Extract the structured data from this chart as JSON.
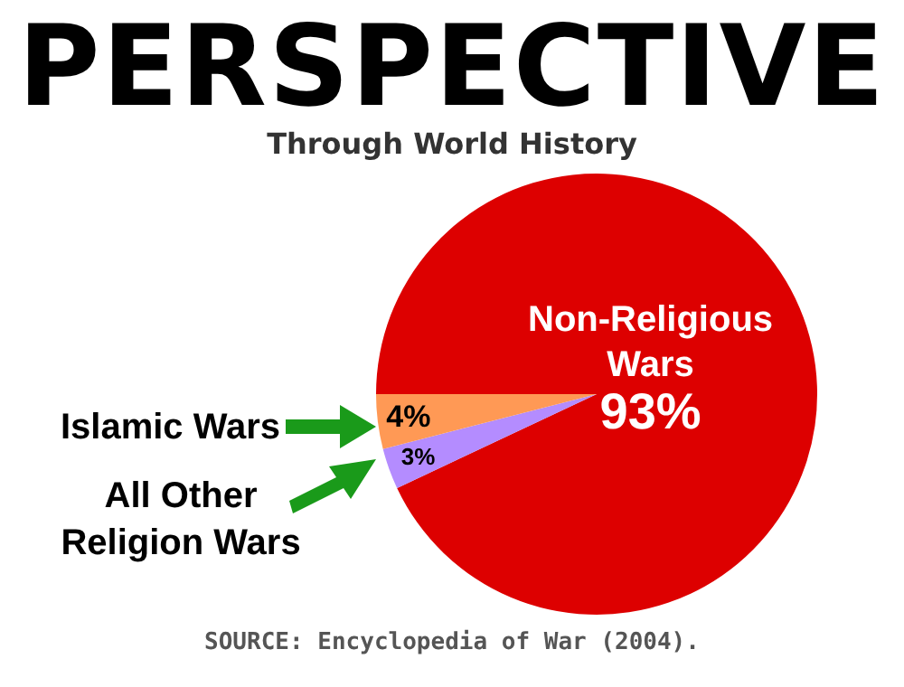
{
  "chart_data": {
    "type": "pie",
    "title": "PERSPECTIVE",
    "subtitle": "Through World History",
    "categories": [
      "Non-Religious Wars",
      "All Other Religion Wars",
      "Islamic Wars"
    ],
    "values": [
      93,
      3,
      4
    ],
    "colors": [
      "#dd0000",
      "#b48cff",
      "#ff9955"
    ],
    "value_labels": [
      "93%",
      "3%",
      "4%"
    ],
    "legend": false,
    "annotations": [
      "SOURCE: Encyclopedia of War (2004)."
    ]
  }
}
